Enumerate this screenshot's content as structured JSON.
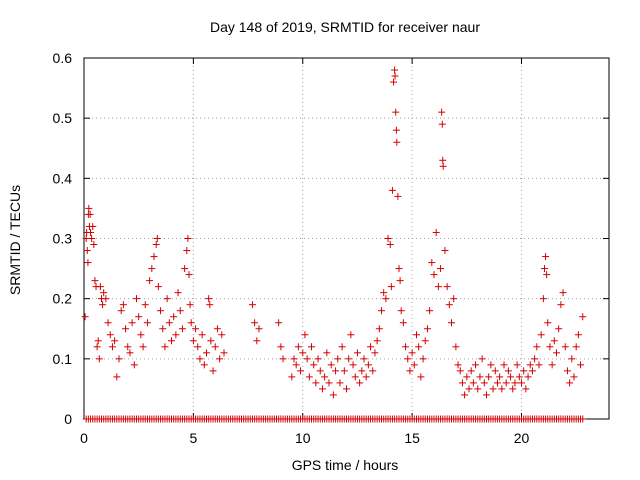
{
  "chart_data": {
    "type": "scatter",
    "title": "Day 148 of 2019, SRMTID for receiver naur",
    "xlabel": "GPS time / hours",
    "ylabel": "SRMTID / TECUs",
    "xlim": [
      0,
      24
    ],
    "ylim": [
      0,
      0.6
    ],
    "xticks": [
      0,
      5,
      10,
      15,
      20
    ],
    "xtick_labels": [
      "0",
      "5",
      "10",
      "15",
      "20"
    ],
    "yticks": [
      0,
      0.1,
      0.2,
      0.3,
      0.4,
      0.5,
      0.6
    ],
    "ytick_labels": [
      "0",
      "0.1",
      "0.2",
      "0.3",
      "0.4",
      "0.5",
      "0.6"
    ],
    "grid": true,
    "marker": "+",
    "series_color": "#d40000",
    "series": [
      {
        "name": "SRMTID",
        "points": [
          [
            0.05,
            0.17
          ],
          [
            0.1,
            0.3
          ],
          [
            0.12,
            0.31
          ],
          [
            0.15,
            0.28
          ],
          [
            0.18,
            0.26
          ],
          [
            0.2,
            0.34
          ],
          [
            0.22,
            0.35
          ],
          [
            0.25,
            0.32
          ],
          [
            0.28,
            0.34
          ],
          [
            0.3,
            0.31
          ],
          [
            0.35,
            0.3
          ],
          [
            0.4,
            0.32
          ],
          [
            0.45,
            0.29
          ],
          [
            0.5,
            0.23
          ],
          [
            0.55,
            0.22
          ],
          [
            0.6,
            0.12
          ],
          [
            0.65,
            0.13
          ],
          [
            0.7,
            0.1
          ],
          [
            0.75,
            0.22
          ],
          [
            0.8,
            0.2
          ],
          [
            0.85,
            0.19
          ],
          [
            0.9,
            0.21
          ],
          [
            1.0,
            0.2
          ],
          [
            1.1,
            0.16
          ],
          [
            1.2,
            0.14
          ],
          [
            1.3,
            0.12
          ],
          [
            1.4,
            0.13
          ],
          [
            1.5,
            0.07
          ],
          [
            1.6,
            0.1
          ],
          [
            1.7,
            0.18
          ],
          [
            1.8,
            0.19
          ],
          [
            1.9,
            0.15
          ],
          [
            2.0,
            0.12
          ],
          [
            2.1,
            0.11
          ],
          [
            2.2,
            0.16
          ],
          [
            2.3,
            0.09
          ],
          [
            2.4,
            0.2
          ],
          [
            2.5,
            0.17
          ],
          [
            2.6,
            0.14
          ],
          [
            2.7,
            0.12
          ],
          [
            2.8,
            0.19
          ],
          [
            2.9,
            0.16
          ],
          [
            3.0,
            0.23
          ],
          [
            3.1,
            0.25
          ],
          [
            3.2,
            0.27
          ],
          [
            3.3,
            0.29
          ],
          [
            3.35,
            0.3
          ],
          [
            3.4,
            0.22
          ],
          [
            3.5,
            0.18
          ],
          [
            3.6,
            0.15
          ],
          [
            3.7,
            0.12
          ],
          [
            3.8,
            0.2
          ],
          [
            3.9,
            0.16
          ],
          [
            4.0,
            0.13
          ],
          [
            4.1,
            0.17
          ],
          [
            4.2,
            0.14
          ],
          [
            4.3,
            0.21
          ],
          [
            4.4,
            0.18
          ],
          [
            4.5,
            0.15
          ],
          [
            4.6,
            0.25
          ],
          [
            4.7,
            0.28
          ],
          [
            4.75,
            0.3
          ],
          [
            4.8,
            0.24
          ],
          [
            4.85,
            0.19
          ],
          [
            4.9,
            0.16
          ],
          [
            5.0,
            0.13
          ],
          [
            5.1,
            0.15
          ],
          [
            5.2,
            0.12
          ],
          [
            5.3,
            0.1
          ],
          [
            5.4,
            0.14
          ],
          [
            5.5,
            0.09
          ],
          [
            5.6,
            0.11
          ],
          [
            5.7,
            0.2
          ],
          [
            5.75,
            0.19
          ],
          [
            5.8,
            0.13
          ],
          [
            5.9,
            0.08
          ],
          [
            6.0,
            0.12
          ],
          [
            6.1,
            0.15
          ],
          [
            6.2,
            0.1
          ],
          [
            6.3,
            0.14
          ],
          [
            6.4,
            0.11
          ],
          [
            7.7,
            0.19
          ],
          [
            7.8,
            0.16
          ],
          [
            7.9,
            0.13
          ],
          [
            8.0,
            0.15
          ],
          [
            8.9,
            0.16
          ],
          [
            9.0,
            0.12
          ],
          [
            9.1,
            0.1
          ],
          [
            9.5,
            0.07
          ],
          [
            9.6,
            0.1
          ],
          [
            9.7,
            0.09
          ],
          [
            9.8,
            0.12
          ],
          [
            9.9,
            0.08
          ],
          [
            10.0,
            0.11
          ],
          [
            10.1,
            0.14
          ],
          [
            10.2,
            0.1
          ],
          [
            10.3,
            0.07
          ],
          [
            10.4,
            0.12
          ],
          [
            10.5,
            0.09
          ],
          [
            10.6,
            0.06
          ],
          [
            10.7,
            0.1
          ],
          [
            10.8,
            0.08
          ],
          [
            10.9,
            0.05
          ],
          [
            11.0,
            0.07
          ],
          [
            11.1,
            0.11
          ],
          [
            11.2,
            0.06
          ],
          [
            11.3,
            0.09
          ],
          [
            11.4,
            0.04
          ],
          [
            11.5,
            0.08
          ],
          [
            11.6,
            0.1
          ],
          [
            11.7,
            0.06
          ],
          [
            11.8,
            0.12
          ],
          [
            11.9,
            0.08
          ],
          [
            12.0,
            0.05
          ],
          [
            12.1,
            0.1
          ],
          [
            12.2,
            0.14
          ],
          [
            12.3,
            0.09
          ],
          [
            12.4,
            0.07
          ],
          [
            12.5,
            0.11
          ],
          [
            12.6,
            0.06
          ],
          [
            12.7,
            0.08
          ],
          [
            12.8,
            0.1
          ],
          [
            12.9,
            0.07
          ],
          [
            13.0,
            0.09
          ],
          [
            13.1,
            0.12
          ],
          [
            13.2,
            0.08
          ],
          [
            13.3,
            0.11
          ],
          [
            13.4,
            0.13
          ],
          [
            13.5,
            0.15
          ],
          [
            13.6,
            0.18
          ],
          [
            13.7,
            0.21
          ],
          [
            13.8,
            0.2
          ],
          [
            13.9,
            0.3
          ],
          [
            14.0,
            0.29
          ],
          [
            14.05,
            0.22
          ],
          [
            14.1,
            0.38
          ],
          [
            14.15,
            0.56
          ],
          [
            14.2,
            0.58
          ],
          [
            14.22,
            0.57
          ],
          [
            14.25,
            0.51
          ],
          [
            14.28,
            0.48
          ],
          [
            14.3,
            0.46
          ],
          [
            14.35,
            0.37
          ],
          [
            14.4,
            0.25
          ],
          [
            14.45,
            0.23
          ],
          [
            14.5,
            0.18
          ],
          [
            14.6,
            0.16
          ],
          [
            14.7,
            0.12
          ],
          [
            14.8,
            0.1
          ],
          [
            14.9,
            0.08
          ],
          [
            15.0,
            0.11
          ],
          [
            15.1,
            0.09
          ],
          [
            15.2,
            0.14
          ],
          [
            15.3,
            0.12
          ],
          [
            15.4,
            0.07
          ],
          [
            15.5,
            0.1
          ],
          [
            15.6,
            0.13
          ],
          [
            15.7,
            0.15
          ],
          [
            15.8,
            0.18
          ],
          [
            15.9,
            0.26
          ],
          [
            16.0,
            0.24
          ],
          [
            16.1,
            0.31
          ],
          [
            16.2,
            0.22
          ],
          [
            16.3,
            0.25
          ],
          [
            16.35,
            0.51
          ],
          [
            16.38,
            0.49
          ],
          [
            16.4,
            0.43
          ],
          [
            16.42,
            0.42
          ],
          [
            16.5,
            0.28
          ],
          [
            16.6,
            0.22
          ],
          [
            16.7,
            0.19
          ],
          [
            16.8,
            0.16
          ],
          [
            16.9,
            0.2
          ],
          [
            17.0,
            0.12
          ],
          [
            17.1,
            0.09
          ],
          [
            17.2,
            0.08
          ],
          [
            17.3,
            0.06
          ],
          [
            17.4,
            0.04
          ],
          [
            17.5,
            0.07
          ],
          [
            17.6,
            0.05
          ],
          [
            17.7,
            0.08
          ],
          [
            17.8,
            0.06
          ],
          [
            17.9,
            0.09
          ],
          [
            18.0,
            0.05
          ],
          [
            18.1,
            0.07
          ],
          [
            18.2,
            0.1
          ],
          [
            18.3,
            0.06
          ],
          [
            18.4,
            0.04
          ],
          [
            18.5,
            0.07
          ],
          [
            18.6,
            0.09
          ],
          [
            18.7,
            0.05
          ],
          [
            18.8,
            0.08
          ],
          [
            18.9,
            0.06
          ],
          [
            19.0,
            0.07
          ],
          [
            19.1,
            0.05
          ],
          [
            19.2,
            0.09
          ],
          [
            19.3,
            0.06
          ],
          [
            19.4,
            0.08
          ],
          [
            19.5,
            0.07
          ],
          [
            19.6,
            0.05
          ],
          [
            19.7,
            0.06
          ],
          [
            19.8,
            0.09
          ],
          [
            19.9,
            0.07
          ],
          [
            20.0,
            0.06
          ],
          [
            20.1,
            0.08
          ],
          [
            20.2,
            0.05
          ],
          [
            20.3,
            0.07
          ],
          [
            20.4,
            0.09
          ],
          [
            20.5,
            0.08
          ],
          [
            20.6,
            0.1
          ],
          [
            20.7,
            0.12
          ],
          [
            20.8,
            0.09
          ],
          [
            20.9,
            0.14
          ],
          [
            21.0,
            0.2
          ],
          [
            21.05,
            0.25
          ],
          [
            21.1,
            0.27
          ],
          [
            21.15,
            0.24
          ],
          [
            21.2,
            0.16
          ],
          [
            21.3,
            0.12
          ],
          [
            21.4,
            0.09
          ],
          [
            21.5,
            0.13
          ],
          [
            21.6,
            0.11
          ],
          [
            21.7,
            0.15
          ],
          [
            21.8,
            0.19
          ],
          [
            21.9,
            0.21
          ],
          [
            22.0,
            0.12
          ],
          [
            22.1,
            0.08
          ],
          [
            22.2,
            0.06
          ],
          [
            22.3,
            0.1
          ],
          [
            22.4,
            0.07
          ],
          [
            22.5,
            0.12
          ],
          [
            22.6,
            0.14
          ],
          [
            22.7,
            0.09
          ],
          [
            22.8,
            0.17
          ]
        ],
        "zero_x": [
          0.1,
          0.2,
          0.3,
          0.4,
          0.5,
          0.6,
          0.7,
          0.8,
          0.9,
          1.0,
          1.1,
          1.2,
          1.3,
          1.4,
          1.5,
          1.6,
          1.7,
          1.8,
          1.9,
          2.0,
          2.1,
          2.2,
          2.3,
          2.4,
          2.5,
          2.6,
          2.7,
          2.8,
          2.9,
          3.0,
          3.1,
          3.2,
          3.3,
          3.4,
          3.5,
          3.6,
          3.7,
          3.8,
          3.9,
          4.0,
          4.1,
          4.2,
          4.3,
          4.4,
          4.5,
          4.6,
          4.7,
          4.8,
          4.9,
          5.0,
          5.1,
          5.2,
          5.3,
          5.4,
          5.5,
          5.6,
          5.7,
          5.8,
          5.9,
          6.0,
          6.1,
          6.2,
          6.3,
          6.4,
          6.5,
          6.6,
          6.7,
          6.8,
          6.9,
          7.0,
          7.1,
          7.2,
          7.3,
          7.4,
          7.5,
          7.6,
          7.7,
          7.8,
          7.9,
          8.0,
          8.1,
          8.2,
          8.3,
          8.4,
          8.5,
          8.6,
          8.7,
          8.8,
          8.9,
          9.0,
          9.1,
          9.2,
          9.3,
          9.4,
          9.5,
          9.6,
          9.7,
          9.8,
          9.9,
          10.0,
          10.1,
          10.2,
          10.3,
          10.4,
          10.5,
          10.6,
          10.7,
          10.8,
          10.9,
          11.0,
          11.1,
          11.2,
          11.3,
          11.4,
          11.5,
          11.6,
          11.7,
          11.8,
          11.9,
          12.0,
          12.1,
          12.2,
          12.3,
          12.4,
          12.5,
          12.6,
          12.7,
          12.8,
          12.9,
          13.0,
          13.1,
          13.2,
          13.3,
          13.4,
          13.5,
          13.6,
          13.7,
          13.8,
          13.9,
          14.0,
          14.1,
          14.2,
          14.3,
          14.4,
          14.5,
          14.6,
          14.7,
          14.8,
          14.9,
          15.0,
          15.1,
          15.2,
          15.3,
          15.4,
          15.5,
          15.6,
          15.7,
          15.8,
          15.9,
          16.0,
          16.1,
          16.2,
          16.3,
          16.4,
          16.5,
          16.6,
          16.7,
          16.8,
          16.9,
          17.0,
          17.1,
          17.2,
          17.3,
          17.4,
          17.5,
          17.6,
          17.7,
          17.8,
          17.9,
          18.0,
          18.1,
          18.2,
          18.3,
          18.4,
          18.5,
          18.6,
          18.7,
          18.8,
          18.9,
          19.0,
          19.1,
          19.2,
          19.3,
          19.4,
          19.5,
          19.6,
          19.7,
          19.8,
          19.9,
          20.0,
          20.1,
          20.2,
          20.3,
          20.4,
          20.5,
          20.6,
          20.7,
          20.8,
          20.9,
          21.0,
          21.1,
          21.2,
          21.3,
          21.4,
          21.5,
          21.6,
          21.7,
          21.8,
          21.9,
          22.0,
          22.1,
          22.2,
          22.3,
          22.4,
          22.5,
          22.6,
          22.7,
          22.8
        ]
      }
    ]
  }
}
